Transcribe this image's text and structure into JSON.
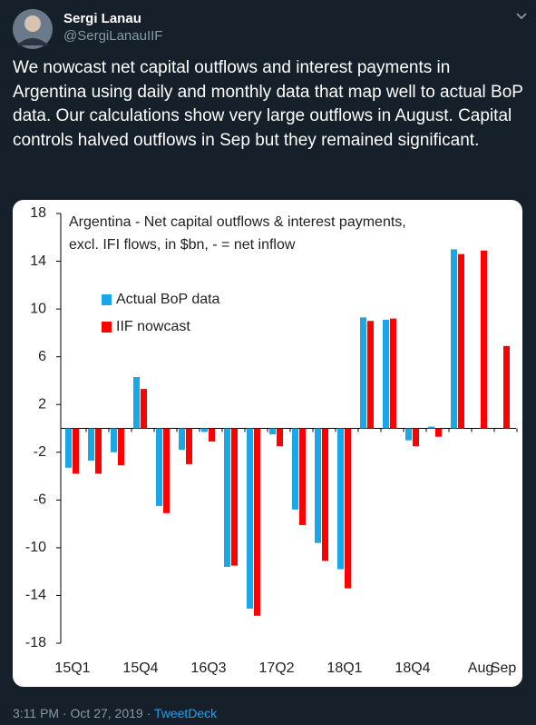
{
  "tweet": {
    "name": "Sergi Lanau",
    "handle": "@SergiLanauIIF",
    "text": "We nowcast net capital outflows and interest payments in Argentina using daily and monthly data that map well to actual BoP data. Our calculations show very large outflows in August. Capital controls halved outflows in Sep but they remained significant.",
    "timestamp": "3:11 PM · Oct 27, 2019",
    "source": "TweetDeck"
  },
  "chart_data": {
    "type": "bar",
    "title": [
      "Argentina - Net capital outflows & interest payments,",
      "excl. IFI flows, in $bn, - = net inflow"
    ],
    "categories": [
      "15Q1",
      null,
      null,
      "15Q4",
      null,
      null,
      "16Q3",
      null,
      null,
      "17Q2",
      null,
      null,
      "18Q1",
      null,
      null,
      "18Q4",
      null,
      null,
      "Aug",
      "Sep"
    ],
    "series": [
      {
        "name": "Actual BoP data",
        "color": "#1aa7e8",
        "values": [
          -3.3,
          -2.7,
          -2.0,
          4.3,
          -6.5,
          -1.8,
          -0.3,
          -11.6,
          -15.1,
          -0.5,
          -6.8,
          -9.6,
          -11.8,
          9.3,
          9.1,
          -1.0,
          0.15,
          15.0,
          null,
          null
        ]
      },
      {
        "name": "IIF nowcast",
        "color": "#ff0000",
        "values": [
          -3.8,
          -3.8,
          -3.1,
          3.3,
          -7.1,
          -3.0,
          -1.1,
          -11.5,
          -15.7,
          -1.5,
          -8.1,
          -11.1,
          -13.4,
          9.0,
          9.2,
          -1.5,
          -0.7,
          14.6,
          14.9,
          6.9
        ]
      }
    ],
    "ylim": [
      -18,
      18
    ],
    "yticks": [
      18,
      14,
      10,
      6,
      2,
      -2,
      -6,
      -10,
      -14,
      -18
    ]
  }
}
